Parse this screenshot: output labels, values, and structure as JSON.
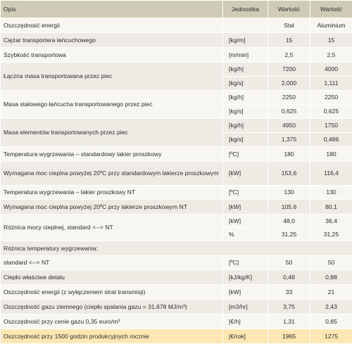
{
  "header": {
    "desc": "Opis",
    "unit": "Jednostka",
    "v1": "Wartość",
    "v2": "Wartość"
  },
  "rows": [
    {
      "desc": "Oszczędność energii",
      "unit": "",
      "v1": "Stal",
      "v2": "Aluminium"
    },
    {
      "desc": "Ciężar transportera łańcuchowego",
      "unit": "[kg/m]",
      "v1": "15",
      "v2": "15"
    },
    {
      "desc": "Szybkość transportowa",
      "unit": "[m/min]",
      "v1": "2,5",
      "v2": "2,5"
    },
    {
      "desc": "Łączna masa transportowana przez piec",
      "subrows": [
        {
          "unit": "[kg/h]",
          "v1": "7200",
          "v2": "4000"
        },
        {
          "unit": "[kg/s]",
          "v1": "2,000",
          "v2": "1,111"
        }
      ]
    },
    {
      "desc": "Masa stalowego łańcucha transportowanego przez piec",
      "subrows": [
        {
          "unit": "[kg/h]",
          "v1": "2250",
          "v2": "2250"
        },
        {
          "unit": "[kg/s]",
          "v1": "0,625",
          "v2": "0,625"
        }
      ]
    },
    {
      "desc": "Masa elementów transportowanych przez piec",
      "subrows": [
        {
          "unit": "[kg/h]",
          "v1": "4950",
          "v2": "1750"
        },
        {
          "unit": "[kg/s]",
          "v1": "1,375",
          "v2": "0,486"
        }
      ]
    },
    {
      "desc": "Temperatura wygrzewania – standardowy lakier proszkowy",
      "unit": "[ºC]",
      "v1": "180",
      "v2": "180"
    },
    {
      "desc": "Wymagana moc cieplna powyżej 20ºC przy standardowym lakierze proszkowym",
      "unit": "[kW]",
      "v1": "153,6",
      "v2": "116,4"
    },
    {
      "desc": "Temperatura wygrzewania – lakier proszkowy NT",
      "unit": "[ºC]",
      "v1": "130",
      "v2": "130"
    },
    {
      "desc": "Wymagana moc cieplna powyżej 20ºC przy lakierze proszkowym NT",
      "unit": "[kW]",
      "v1": "105,6",
      "v2": "80,1"
    },
    {
      "desc": "Różnica mocy cieplnej, standard <--> NT",
      "subrows": [
        {
          "unit": "[kW]",
          "v1": "48,0",
          "v2": "36,4"
        },
        {
          "unit": "%",
          "v1": "31,25",
          "v2": "31,25"
        }
      ]
    },
    {
      "desc": "Różnica temperatury wygrzewania:",
      "unit": "",
      "v1": "",
      "v2": ""
    },
    {
      "desc": "standard <--> NT",
      "unit": "[ºC]",
      "v1": "50",
      "v2": "50"
    },
    {
      "desc": "Ciepło właściwe detalu",
      "unit": "[kJ/kg/K]",
      "v1": "0,48",
      "v2": "0,88"
    },
    {
      "desc": "Oszczędność energii (z wyłączeniem strat transmisji)",
      "unit": "[kW]",
      "v1": "33",
      "v2": "21"
    },
    {
      "desc": "Oszczędność gazu ziemnego (ciepło spalania gazu = 31,678 MJ/m³)",
      "unit": "[m3/hr]",
      "v1": "3,75",
      "v2": "2,43"
    },
    {
      "desc": "Oszczędność przy cenie gazu 0,35 euro/m³",
      "unit": "[€/h]",
      "v1": "1,31",
      "v2": "0,85"
    },
    {
      "desc": "Oszczędność przy 1500 godzin produkcyjnych rocznie",
      "unit": "[€/rok]",
      "v1": "1965",
      "v2": "1275"
    }
  ]
}
